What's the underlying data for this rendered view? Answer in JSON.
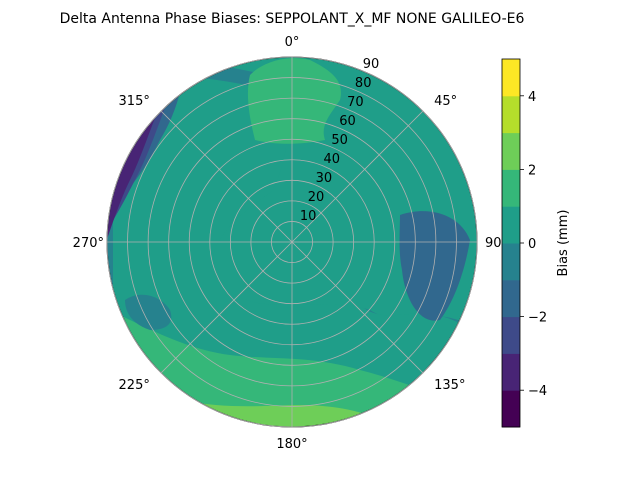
{
  "chart_data": {
    "type": "polar-contour",
    "title": "Delta Antenna Phase Biases: SEPPOLANT_X_MF  NONE GALILEO-E6",
    "angle_tick_labels": [
      "0°",
      "45°",
      "90°",
      "135°",
      "180°",
      "225°",
      "270°",
      "315°"
    ],
    "radial_tick_labels": [
      "10",
      "20",
      "30",
      "40",
      "50",
      "60",
      "70",
      "80",
      "90"
    ],
    "radial_range": [
      0,
      90
    ],
    "grid": true,
    "colorbar": {
      "label": "Bias (mm)",
      "ticks": [
        "−4",
        "−2",
        "0",
        "2",
        "4"
      ],
      "range": [
        -5,
        5
      ],
      "levels": [
        -5,
        -4.5,
        -4,
        -3.5,
        -3,
        -2.5,
        -2,
        -1.5,
        -1,
        -0.5,
        0,
        0.5,
        1,
        1.5,
        2,
        2.5,
        3,
        3.5,
        4,
        4.5,
        5
      ],
      "colormap": "viridis",
      "colors": [
        "#440154",
        "#482475",
        "#3e4a89",
        "#31688e",
        "#26828e",
        "#1f9e89",
        "#35b779",
        "#6ece58",
        "#b5de2b",
        "#fde725"
      ]
    },
    "regions": [
      {
        "name": "positive-bias-north",
        "level": [
          1,
          2
        ],
        "az_deg": [
          330,
          20
        ],
        "elev_deg": [
          60,
          80
        ]
      },
      {
        "name": "positive-bias-south-rim",
        "level": [
          1,
          2
        ],
        "az_deg": [
          120,
          240
        ],
        "elev_deg": [
          0,
          20
        ]
      },
      {
        "name": "negative-bias-west-rim",
        "level": [
          -4,
          -2
        ],
        "az_deg": [
          280,
          330
        ],
        "elev_deg": [
          0,
          20
        ]
      },
      {
        "name": "negative-bias-east",
        "level": [
          -2,
          -1
        ],
        "az_deg": [
          70,
          130
        ],
        "elev_deg": [
          10,
          40
        ]
      }
    ]
  }
}
